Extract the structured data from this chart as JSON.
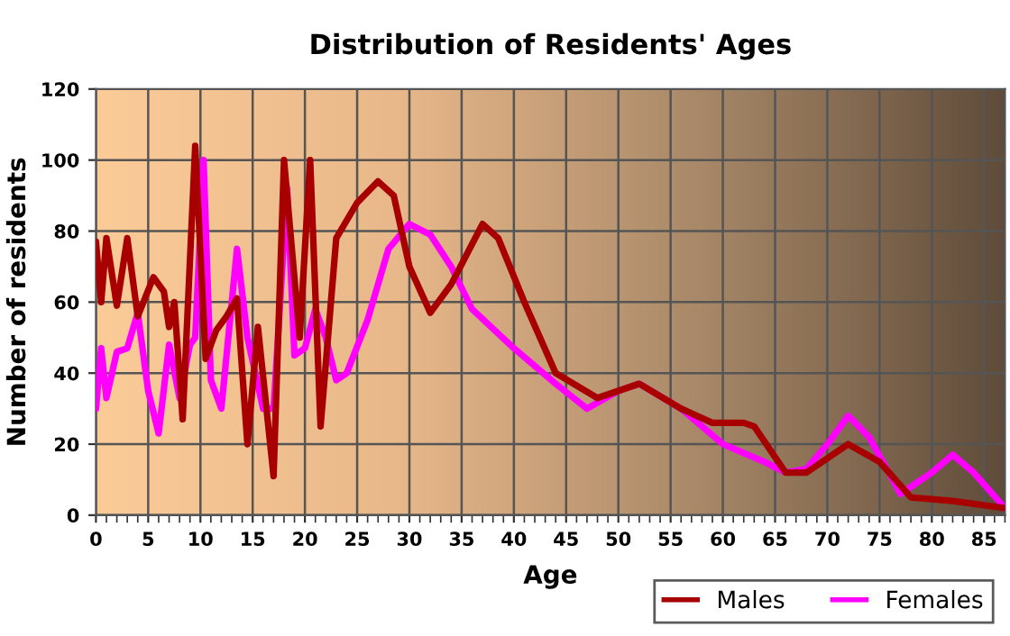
{
  "chart_data": {
    "type": "line",
    "title": "Distribution of Residents' Ages",
    "xlabel": "Age",
    "ylabel": "Number of residents",
    "xlim": [
      0,
      87
    ],
    "ylim": [
      0,
      120
    ],
    "xticks": [
      0,
      5,
      10,
      15,
      20,
      25,
      30,
      35,
      40,
      45,
      50,
      55,
      60,
      65,
      70,
      75,
      80,
      85
    ],
    "yticks": [
      0,
      20,
      40,
      60,
      80,
      100,
      120
    ],
    "grid": true,
    "legend": "bottom right",
    "marker": "none",
    "line_style": "solid",
    "series": [
      {
        "name": "Males",
        "color": "#a80000",
        "x": [
          0,
          0.5,
          1,
          2,
          3,
          4,
          5.5,
          6.5,
          7,
          7.5,
          8.3,
          9.5,
          10.5,
          11.5,
          12.5,
          13.5,
          14.5,
          15.5,
          17,
          18,
          19.5,
          20.5,
          21.5,
          23,
          25,
          27,
          28.5,
          30,
          32,
          34,
          37,
          38.5,
          41,
          44,
          48,
          52,
          56,
          59,
          62,
          63,
          66,
          68,
          72,
          75,
          78,
          82,
          87
        ],
        "values": [
          77,
          60,
          78,
          59,
          78,
          56,
          67,
          63,
          53,
          60,
          27,
          104,
          44,
          52,
          56,
          61,
          20,
          53,
          11,
          100,
          50,
          100,
          25,
          78,
          88,
          94,
          90,
          70,
          57,
          65,
          82,
          78,
          60,
          40,
          33,
          37,
          30,
          26,
          26,
          25,
          12,
          12,
          20,
          15,
          5,
          4,
          2
        ]
      },
      {
        "name": "Females",
        "color": "#ff00ff",
        "x": [
          0,
          0.5,
          1,
          2,
          3,
          4,
          5,
          6,
          7,
          8,
          9,
          9.5,
          10.3,
          11,
          12,
          13.5,
          14.5,
          16,
          17,
          18.3,
          19,
          20,
          21,
          22,
          23,
          24,
          26,
          28,
          30,
          32,
          34,
          36,
          40,
          44,
          47,
          50,
          52,
          56,
          60,
          64,
          66,
          68,
          70,
          72,
          74,
          77,
          80,
          82,
          84,
          87
        ],
        "values": [
          30,
          47,
          33,
          46,
          47,
          57,
          35,
          23,
          48,
          33,
          48,
          50,
          100,
          38,
          30,
          75,
          50,
          30,
          30,
          92,
          45,
          47,
          58,
          50,
          38,
          40,
          55,
          75,
          82,
          79,
          70,
          58,
          47,
          37,
          30,
          35,
          37,
          30,
          20,
          15,
          12,
          13,
          20,
          28,
          22,
          6,
          12,
          17,
          12,
          2
        ]
      }
    ]
  }
}
